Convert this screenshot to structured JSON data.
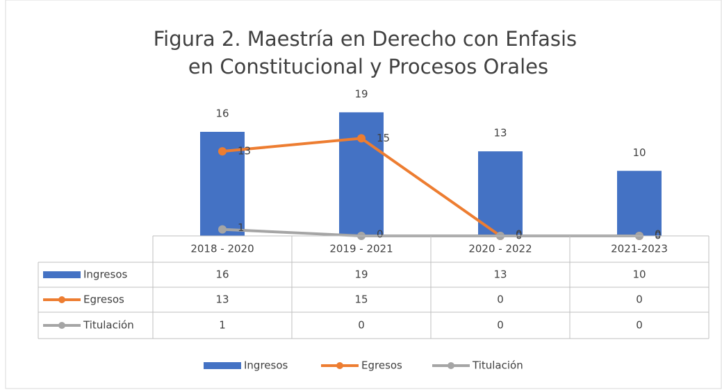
{
  "chart_data": {
    "type": "bar",
    "title": "Figura 2. Maestría en Derecho con Enfasis en Constitucional y Procesos Orales",
    "categories": [
      "2018 - 2020",
      "2019 - 2021",
      "2020 - 2022",
      "2021-2023"
    ],
    "series": [
      {
        "name": "Ingresos",
        "type": "bar",
        "color": "#4472c4",
        "values": [
          16,
          19,
          13,
          10
        ]
      },
      {
        "name": "Egresos",
        "type": "line",
        "color": "#ed7d31",
        "values": [
          13,
          15,
          0,
          0
        ]
      },
      {
        "name": "Titulación",
        "type": "line",
        "color": "#a5a5a5",
        "values": [
          1,
          0,
          0,
          0
        ]
      }
    ],
    "ylim": [
      0,
      20
    ],
    "legend": "bottom"
  }
}
